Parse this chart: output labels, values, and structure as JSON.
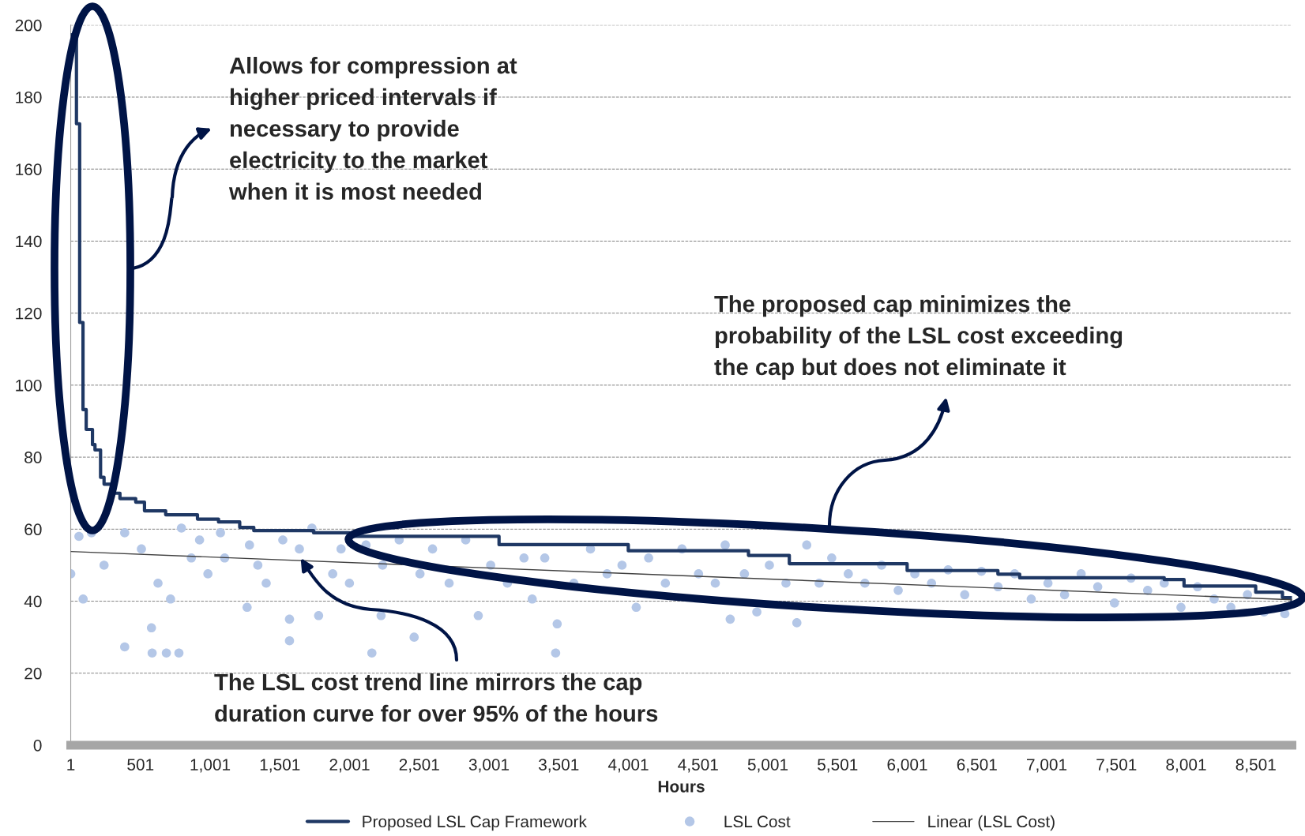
{
  "chart_data": {
    "type": "scatter",
    "xlabel": "Hours",
    "annotations": [
      "Allows for compression at\nhigher priced intervals if\nnecessary to provide\nelectricity to the market\nwhen it is most needed",
      "The proposed cap minimizes the\nprobability of the LSL cost exceeding\nthe cap but does not eliminate it",
      {
        "text": "The LSL cost trend line mirrors the cap\nduration curve for over 95% of the hours",
        "x": 1650,
        "y": 52
      }
    ],
    "xlim": [
      1,
      8760
    ],
    "ylim": [
      0,
      200
    ],
    "xticks": [
      1,
      501,
      {
        "value": 1001,
        "label": "1,001"
      },
      {
        "value": 1501,
        "label": "1,501"
      },
      {
        "value": 2001,
        "label": "2,001"
      },
      {
        "value": 2501,
        "label": "2,501"
      },
      {
        "value": 3001,
        "label": "3,001"
      },
      {
        "value": 3501,
        "label": "3,501"
      },
      {
        "value": 4001,
        "label": "4,001"
      },
      {
        "value": 4501,
        "label": "4,501"
      },
      {
        "value": 5001,
        "label": "5,001"
      },
      {
        "value": 5501,
        "label": "5,501"
      },
      {
        "value": 6001,
        "label": "6,001"
      },
      {
        "value": 6501,
        "label": "6,501"
      },
      {
        "value": 7001,
        "label": "7,001"
      },
      {
        "value": 7501,
        "label": "7,501"
      },
      {
        "value": 8001,
        "label": "8,001"
      },
      {
        "value": 8501,
        "label": "8,501"
      }
    ],
    "yticks": [
      0,
      20,
      40,
      60,
      80,
      100,
      120,
      140,
      160,
      180,
      200
    ],
    "grid": "y",
    "legend": "bottom",
    "series": [
      {
        "name": "Proposed LSL Cap Framework",
        "type": "step",
        "color": "#1f3864",
        "x": [
          1,
          42,
          65,
          89,
          112,
          157,
          175,
          215,
          240,
          303,
          354,
          467,
          530,
          682,
          910,
          1061,
          1213,
          1314,
          1743,
          2000,
          3073,
          4000,
          4862,
          5155,
          6000,
          6651,
          6807,
          7844,
          7986,
          8500,
          8692,
          8760
        ],
        "values": [
          197.3,
          172.6,
          117.4,
          93.2,
          87.7,
          83.5,
          82,
          74.4,
          72.5,
          70,
          68.5,
          67.5,
          65.1,
          64,
          62.8,
          62,
          60.5,
          59.6,
          59,
          58,
          55.7,
          54,
          52.7,
          50.4,
          48.5,
          47.5,
          46.5,
          46,
          44.2,
          42.5,
          41,
          40
        ]
      },
      {
        "name": "LSL Cost",
        "color": "#b4c7e7",
        "marker": "circle",
        "x": [
          1,
          60,
          90,
          150,
          240,
          388,
          388,
          508,
          580,
          585,
          627,
          687,
          717,
          777,
          795,
          866,
          925,
          985,
          1075,
          1105,
          1266,
          1283,
          1343,
          1403,
          1522,
          1570,
          1570,
          1641,
          1731,
          1779,
          1880,
          1940,
          2000,
          2119,
          2161,
          2227,
          2238,
          2357,
          2464,
          2506,
          2596,
          2715,
          2834,
          2924,
          3013,
          3133,
          3252,
          3311,
          3401,
          3479,
          3490,
          3610,
          3729,
          3848,
          3955,
          4057,
          4146,
          4266,
          4385,
          4504,
          4624,
          4695,
          4731,
          4833,
          4922,
          5012,
          5131,
          5209,
          5280,
          5369,
          5459,
          5578,
          5697,
          5817,
          5936,
          6055,
          6175,
          6294,
          6413,
          6533,
          6652,
          6771,
          6890,
          7010,
          7129,
          7248,
          7367,
          7487,
          7606,
          7725,
          7844,
          7964,
          8083,
          8202,
          8322,
          8441,
          8560,
          8709
        ],
        "values": [
          47.6,
          58,
          40.6,
          59,
          50,
          27.3,
          59,
          54.5,
          32.6,
          25.6,
          45,
          25.6,
          40.6,
          25.6,
          60.3,
          52,
          57,
          47.6,
          59,
          52,
          38.3,
          55.6,
          50,
          45,
          57,
          29,
          35,
          54.5,
          60.3,
          36,
          47.6,
          54.5,
          45,
          55.6,
          25.6,
          36,
          50,
          57,
          30,
          47.6,
          54.5,
          45,
          57,
          36,
          50,
          45,
          52,
          40.6,
          52,
          25.6,
          33.7,
          45,
          54.5,
          47.6,
          50,
          38.3,
          52,
          45,
          54.5,
          47.6,
          45,
          55.6,
          35,
          47.6,
          37,
          50,
          45,
          34,
          55.6,
          45,
          52,
          47.6,
          45,
          50,
          43,
          47.6,
          45,
          48.7,
          41.8,
          48.3,
          44,
          47.6,
          40.6,
          45,
          41.8,
          47.6,
          44,
          39.5,
          46.4,
          43,
          45,
          38.3,
          44,
          40.6,
          38.3,
          41.8,
          37,
          36.5
        ]
      },
      {
        "name": "Linear (LSL Cost)",
        "type": "line",
        "color": "#404040",
        "x": [
          1,
          8760
        ],
        "values": [
          53.8,
          40.4
        ]
      }
    ]
  }
}
